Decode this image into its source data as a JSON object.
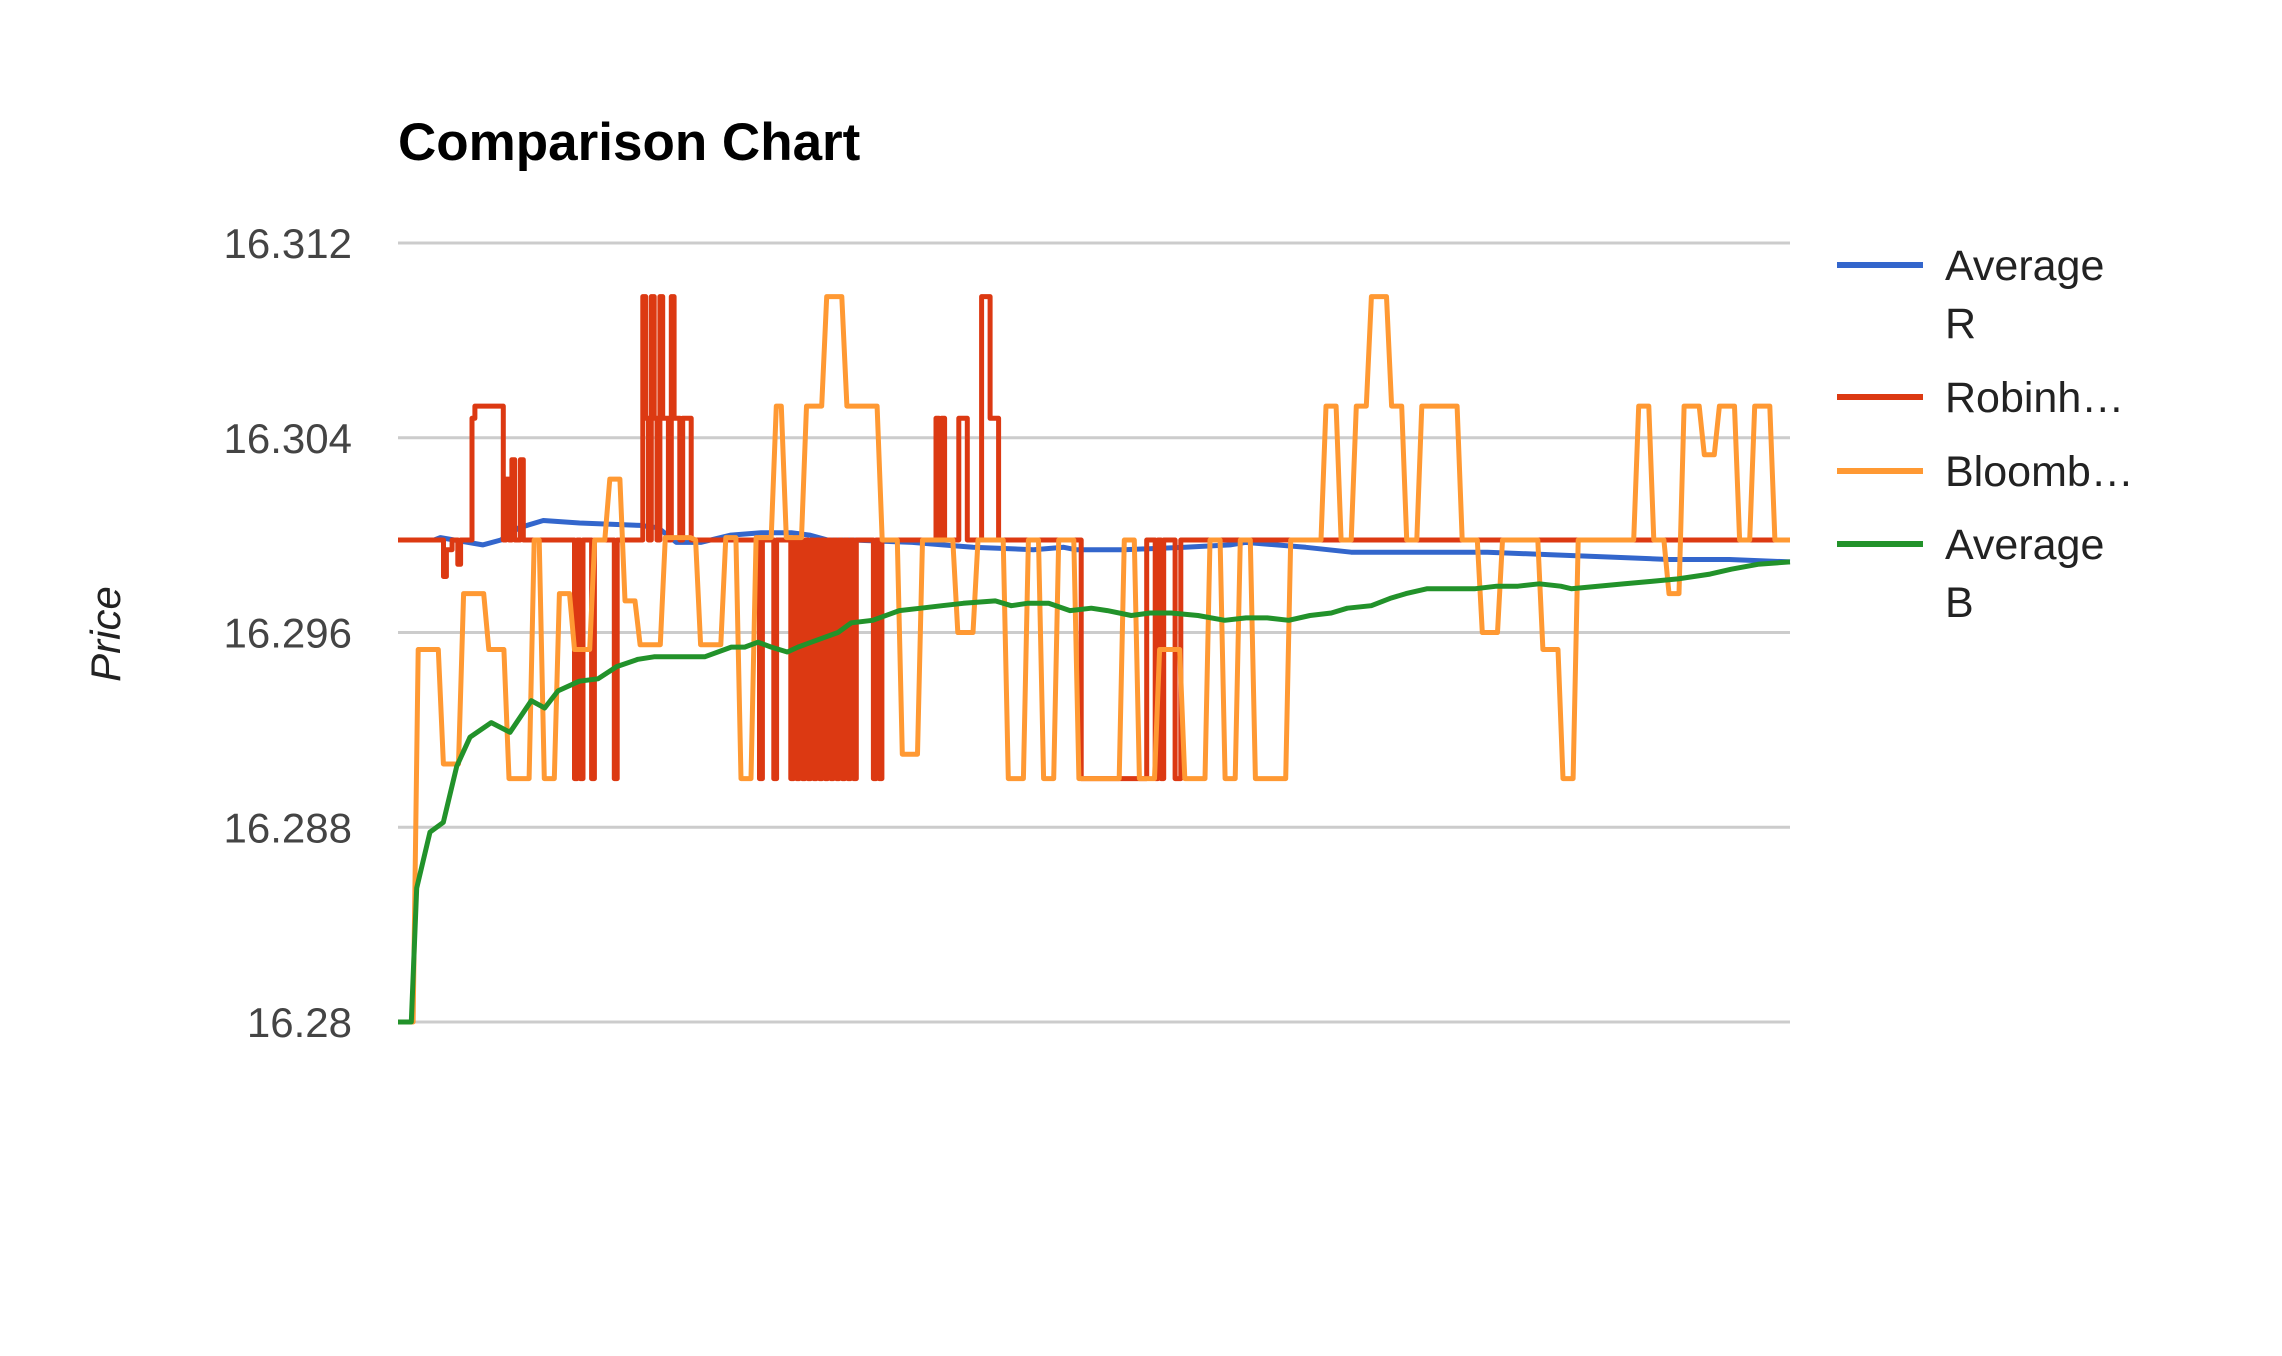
{
  "chart_data": {
    "type": "line",
    "title": "Comparison Chart",
    "xlabel": "",
    "ylabel": "Price",
    "ylim": [
      16.28,
      16.312
    ],
    "yticks": [
      "16.312",
      "16.304",
      "16.296",
      "16.288",
      "16.28"
    ],
    "ytick_values": [
      16.312,
      16.304,
      16.296,
      16.288,
      16.28
    ],
    "grid": true,
    "legend_position": "right",
    "x_count": 200,
    "series": [
      {
        "name": "Average R",
        "legend_lines": [
          "Average",
          "R"
        ],
        "color": "#3366cc",
        "points": [
          [
            0,
            16.2998
          ],
          [
            12,
            16.2998
          ],
          [
            14,
            16.2999
          ],
          [
            28,
            16.2996
          ],
          [
            34,
            16.2998
          ],
          [
            40,
            16.3003
          ],
          [
            48,
            16.3006
          ],
          [
            60,
            16.3005
          ],
          [
            80,
            16.3004
          ],
          [
            86,
            16.3003
          ],
          [
            92,
            16.2997
          ],
          [
            100,
            16.2997
          ],
          [
            110,
            16.3
          ],
          [
            120,
            16.3001
          ],
          [
            130,
            16.3001
          ],
          [
            136,
            16.3
          ],
          [
            142,
            16.2998
          ],
          [
            150,
            16.2998
          ],
          [
            170,
            16.2997
          ],
          [
            180,
            16.2996
          ],
          [
            190,
            16.2995
          ],
          [
            210,
            16.2994
          ],
          [
            220,
            16.2995
          ],
          [
            224,
            16.2994
          ],
          [
            240,
            16.2994
          ],
          [
            260,
            16.2995
          ],
          [
            275,
            16.2996
          ],
          [
            280,
            16.2997
          ],
          [
            300,
            16.2995
          ],
          [
            315,
            16.2993
          ],
          [
            340,
            16.2993
          ],
          [
            360,
            16.2993
          ],
          [
            380,
            16.2992
          ],
          [
            400,
            16.2991
          ],
          [
            420,
            16.299
          ],
          [
            440,
            16.299
          ],
          [
            460,
            16.2989
          ]
        ],
        "x_domain": 460
      },
      {
        "name": "Robinh…",
        "legend_lines": [
          "Robinh…"
        ],
        "color": "#dc3912",
        "values": [
          16.2998,
          16.2998,
          16.2998,
          16.2998,
          16.2998,
          16.2998,
          16.2998,
          16.2998,
          16.2998,
          16.2998,
          16.2998,
          16.2998,
          16.2998,
          16.2998,
          16.2998,
          16.2998,
          16.2983,
          16.2994,
          16.2994,
          16.2998,
          16.2998,
          16.2988,
          16.2998,
          16.2998,
          16.2998,
          16.2998,
          16.3048,
          16.3053,
          16.3053,
          16.3053,
          16.3053,
          16.3053,
          16.3053,
          16.3053,
          16.3053,
          16.3053,
          16.3053,
          16.2998,
          16.3023,
          16.2998,
          16.3031,
          16.2998,
          16.2998,
          16.3031,
          16.2998,
          16.2998,
          16.2998,
          16.2998,
          16.2998,
          16.2998,
          16.2998,
          16.2998,
          16.2998,
          16.2998,
          16.2998,
          16.2998,
          16.2998,
          16.2998,
          16.2998,
          16.2998,
          16.2998,
          16.2998,
          16.29,
          16.2998,
          16.29,
          16.2998,
          16.2998,
          16.2998,
          16.29,
          16.2998,
          16.2998,
          16.2998,
          16.2998,
          16.2998,
          16.2998,
          16.2998,
          16.29,
          16.2998,
          16.2998,
          16.2998,
          16.2998,
          16.2998,
          16.2998,
          16.2998,
          16.2998,
          16.2998,
          16.3098,
          16.3048,
          16.2998,
          16.3098,
          16.3048,
          16.2998,
          16.3098,
          16.3048,
          16.3048,
          16.2998,
          16.3098,
          16.3048,
          16.3048,
          16.2998,
          16.3048,
          16.3048,
          16.3048,
          16.2998,
          16.2998,
          16.2998,
          16.2998,
          16.2998,
          16.2998,
          16.2998,
          16.2998,
          16.2998,
          16.2998,
          16.2998,
          16.2998,
          16.2998,
          16.2998,
          16.2998,
          16.2998,
          16.2998,
          16.2998,
          16.2998,
          16.2998,
          16.2998,
          16.2998,
          16.2998,
          16.2998,
          16.29,
          16.2998,
          16.2998,
          16.2998,
          16.2998,
          16.29,
          16.2998,
          16.2998,
          16.2998,
          16.2998,
          16.2998,
          16.29,
          16.2998,
          16.29,
          16.2998,
          16.29,
          16.2998,
          16.29,
          16.2998,
          16.29,
          16.2998,
          16.29,
          16.2998,
          16.29,
          16.2998,
          16.29,
          16.2998,
          16.29,
          16.2998,
          16.29,
          16.2998,
          16.29,
          16.2998,
          16.29,
          16.2998,
          16.2998,
          16.2998,
          16.2998,
          16.2998,
          16.2998,
          16.29,
          16.2998,
          16.29,
          16.2998,
          16.2998,
          16.2998,
          16.2998,
          16.2998,
          16.2998,
          16.2998,
          16.2998,
          16.2998,
          16.2998,
          16.2998,
          16.2998,
          16.2998,
          16.2998,
          16.2998,
          16.2998,
          16.2998,
          16.2998,
          16.2998,
          16.3048,
          16.2998,
          16.3048,
          16.2998,
          16.2998,
          16.2998,
          16.2998,
          16.2998,
          16.3048,
          16.3048,
          16.3048,
          16.2998,
          16.2998,
          16.2998,
          16.2998,
          16.2998,
          16.3098,
          16.3098,
          16.3098,
          16.3048,
          16.3048,
          16.3048,
          16.2998,
          16.2998,
          16.2998,
          16.2998,
          16.2998,
          16.2998,
          16.2998,
          16.2998,
          16.2998,
          16.2998,
          16.2998,
          16.2998,
          16.2998,
          16.2998,
          16.2998,
          16.2998,
          16.2998,
          16.2998,
          16.2998,
          16.2998,
          16.2998,
          16.2998,
          16.2998,
          16.2998,
          16.2998,
          16.2998,
          16.2998,
          16.2998,
          16.2998,
          16.29,
          16.29,
          16.29,
          16.29,
          16.29,
          16.29,
          16.29,
          16.29,
          16.29,
          16.29,
          16.29,
          16.29,
          16.29,
          16.29,
          16.29,
          16.29,
          16.29,
          16.29,
          16.29,
          16.29,
          16.29,
          16.29,
          16.29,
          16.2998,
          16.2998,
          16.2998,
          16.29,
          16.2998,
          16.29,
          16.2998,
          16.2998,
          16.2998,
          16.2998,
          16.29,
          16.29,
          16.2998,
          16.2998,
          16.2998,
          16.2998,
          16.2998,
          16.2998,
          16.2998,
          16.2998,
          16.2998,
          16.2998,
          16.2998,
          16.2998,
          16.2998,
          16.2998,
          16.2998,
          16.2998,
          16.2998,
          16.2998,
          16.2998,
          16.2998,
          16.2998,
          16.2998,
          16.2998,
          16.2998,
          16.2998,
          16.2998,
          16.2998,
          16.2998,
          16.2998,
          16.2998,
          16.2998,
          16.2998,
          16.2998,
          16.2998,
          16.2998,
          16.2998,
          16.2998,
          16.2998,
          16.2998,
          16.2998,
          16.2998,
          16.2998,
          16.2998,
          16.2998,
          16.2998,
          16.2998,
          16.2998,
          16.2998,
          16.2998,
          16.2998,
          16.2998,
          16.2998,
          16.2998,
          16.2998,
          16.2998,
          16.2998,
          16.2998,
          16.2998,
          16.2998,
          16.2998,
          16.2998,
          16.2998,
          16.2998,
          16.2998,
          16.2998,
          16.2998,
          16.2998,
          16.2998,
          16.2998,
          16.2998,
          16.2998,
          16.2998,
          16.2998,
          16.2998,
          16.2998,
          16.2998,
          16.2998,
          16.2998,
          16.2998,
          16.2998,
          16.2998,
          16.2998,
          16.2998,
          16.2998,
          16.2998,
          16.2998,
          16.2998,
          16.2998,
          16.2998,
          16.2998,
          16.2998,
          16.2998,
          16.2998,
          16.2998,
          16.2998,
          16.2998,
          16.2998,
          16.2998,
          16.2998,
          16.2998,
          16.2998,
          16.2998,
          16.2998,
          16.2998,
          16.2998,
          16.2998,
          16.2998,
          16.2998,
          16.2998,
          16.2998,
          16.2998,
          16.2998,
          16.2998,
          16.2998,
          16.2998,
          16.2998,
          16.2998,
          16.2998,
          16.2998,
          16.2998,
          16.2998,
          16.2998,
          16.2998,
          16.2998,
          16.2998,
          16.2998,
          16.2998,
          16.2998,
          16.2998,
          16.2998,
          16.2998,
          16.2998,
          16.2998,
          16.2998,
          16.2998,
          16.2998,
          16.2998,
          16.2998,
          16.2998,
          16.2998,
          16.2998,
          16.2998,
          16.2998,
          16.2998,
          16.2998,
          16.2998,
          16.2998,
          16.2998,
          16.2998,
          16.2998,
          16.2998,
          16.2998,
          16.2998,
          16.2998,
          16.2998,
          16.2998,
          16.2998,
          16.2998,
          16.2998,
          16.2998,
          16.2998,
          16.2998,
          16.2998,
          16.2998,
          16.2998,
          16.2998,
          16.2998,
          16.2998,
          16.2998,
          16.2998,
          16.2998,
          16.2998,
          16.2998,
          16.2998,
          16.2998,
          16.2998,
          16.2998,
          16.2998,
          16.2998,
          16.2998,
          16.2998,
          16.2998,
          16.2998,
          16.2998,
          16.2998,
          16.2998,
          16.2998,
          16.2998,
          16.2998,
          16.2998,
          16.2998,
          16.2998,
          16.2998,
          16.2998,
          16.2998,
          16.2998,
          16.2998,
          16.2998,
          16.2998,
          16.2998,
          16.2998,
          16.2998,
          16.2998,
          16.2998,
          16.2998,
          16.2998,
          16.2998,
          16.2998,
          16.2998,
          16.2998,
          16.2998,
          16.2998,
          16.2998,
          16.2998
        ]
      },
      {
        "name": "Bloomb…",
        "legend_lines": [
          "Bloomb…"
        ],
        "color": "#ff9933",
        "values": []
      },
      {
        "name": "Average B",
        "legend_lines": [
          "Average",
          "B"
        ],
        "color": "#22922a",
        "points": [
          [
            0,
            16.28
          ],
          [
            5,
            16.28
          ],
          [
            7,
            16.2855
          ],
          [
            12,
            16.2878
          ],
          [
            17,
            16.2882
          ],
          [
            22,
            16.2905
          ],
          [
            27,
            16.2917
          ],
          [
            35,
            16.2923
          ],
          [
            42,
            16.2919
          ],
          [
            50,
            16.2932
          ],
          [
            55,
            16.2929
          ],
          [
            60,
            16.2936
          ],
          [
            68,
            16.294
          ],
          [
            75,
            16.2941
          ],
          [
            82,
            16.2946
          ],
          [
            90,
            16.2949
          ],
          [
            96,
            16.295
          ],
          [
            106,
            16.295
          ],
          [
            115,
            16.295
          ],
          [
            125,
            16.2954
          ],
          [
            130,
            16.2954
          ],
          [
            135,
            16.2956
          ],
          [
            140,
            16.2954
          ],
          [
            146,
            16.2952
          ],
          [
            150,
            16.2954
          ],
          [
            155,
            16.2956
          ],
          [
            165,
            16.296
          ],
          [
            170,
            16.2964
          ],
          [
            178,
            16.2965
          ],
          [
            188,
            16.2969
          ],
          [
            196,
            16.297
          ],
          [
            204,
            16.2971
          ],
          [
            212,
            16.2972
          ],
          [
            224,
            16.2973
          ],
          [
            230,
            16.2971
          ],
          [
            236,
            16.2972
          ],
          [
            244,
            16.2972
          ],
          [
            252,
            16.2969
          ],
          [
            260,
            16.297
          ],
          [
            266,
            16.2969
          ],
          [
            275,
            16.2967
          ],
          [
            282,
            16.2968
          ],
          [
            290,
            16.2968
          ],
          [
            300,
            16.2967
          ],
          [
            310,
            16.2965
          ],
          [
            318,
            16.2966
          ],
          [
            326,
            16.2966
          ],
          [
            334,
            16.2965
          ],
          [
            342,
            16.2967
          ],
          [
            350,
            16.2968
          ],
          [
            356,
            16.297
          ],
          [
            365,
            16.2971
          ],
          [
            372,
            16.2974
          ],
          [
            378,
            16.2976
          ],
          [
            386,
            16.2978
          ],
          [
            392,
            16.2978
          ],
          [
            404,
            16.2978
          ],
          [
            412,
            16.2979
          ],
          [
            420,
            16.2979
          ],
          [
            428,
            16.298
          ],
          [
            436,
            16.2979
          ],
          [
            440,
            16.2978
          ],
          [
            450,
            16.2979
          ],
          [
            460,
            16.298
          ],
          [
            470,
            16.2981
          ],
          [
            480,
            16.2982
          ],
          [
            492,
            16.2984
          ],
          [
            500,
            16.2986
          ],
          [
            510,
            16.2988
          ],
          [
            522,
            16.2989
          ]
        ],
        "x_domain": 522
      }
    ]
  }
}
